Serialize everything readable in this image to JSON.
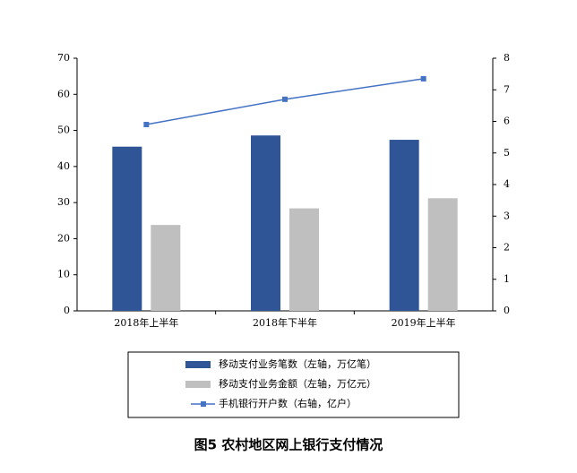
{
  "chart_data": {
    "type": "bar",
    "title": "图5 农村地区网上银行支付情况",
    "categories": [
      "2018年上半年",
      "2018年下半年",
      "2019年上半年"
    ],
    "series": [
      {
        "name": "移动支付业务笔数（左轴，万亿笔）",
        "color": "#2f5597",
        "type": "bar",
        "values": [
          45.5,
          48.6,
          47.4
        ]
      },
      {
        "name": "移动支付业务金额（左轴，万亿元）",
        "color": "#bfbfbf",
        "type": "bar",
        "values": [
          23.8,
          28.4,
          31.2
        ]
      },
      {
        "name": "手机银行开户数（右轴，亿户）",
        "color": "#4472c4",
        "type": "line",
        "axis": "y2",
        "values": [
          5.9,
          6.7,
          7.35
        ]
      }
    ],
    "ylim": [
      0,
      70
    ],
    "yticks": [
      0,
      10,
      20,
      30,
      40,
      50,
      60,
      70
    ],
    "y2lim": [
      0,
      8
    ],
    "y2ticks": [
      0,
      1,
      2,
      3,
      4,
      5,
      6,
      7,
      8
    ]
  }
}
